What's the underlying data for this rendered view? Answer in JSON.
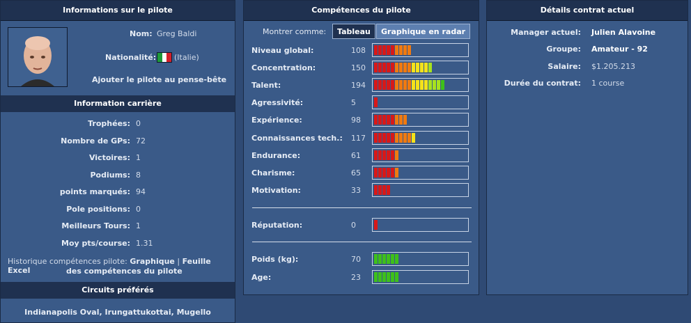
{
  "pilot_info": {
    "title": "Informations sur le pilote",
    "name_label": "Nom:",
    "name_value": "Greg Baldi",
    "nationality_label": "Nationalité:",
    "nationality_value": "(Italie)",
    "flag_icon": "italy-flag-icon",
    "flag_colors": [
      "#1e9a3a",
      "#ffffff",
      "#d4202a"
    ],
    "add_memo_link": "Ajouter le pilote au pense-bête"
  },
  "career": {
    "title": "Information carrière",
    "rows": [
      {
        "label": "Trophées:",
        "value": "0"
      },
      {
        "label": "Nombre de GPs:",
        "value": "72"
      },
      {
        "label": "Victoires:",
        "value": "1"
      },
      {
        "label": "Podiums:",
        "value": "8"
      },
      {
        "label": "points marqués:",
        "value": "94"
      },
      {
        "label": "Pole positions:",
        "value": "0"
      },
      {
        "label": "Meilleurs Tours:",
        "value": "1"
      },
      {
        "label": "Moy pts/course:",
        "value": "1.31"
      }
    ],
    "history_prefix": "Historique compétences pilote:",
    "history_graph_link": "Graphique",
    "history_separator": "|",
    "history_excel_link_1": "Feuille Excel",
    "history_excel_link_2": "des compétences du pilote"
  },
  "circuits": {
    "title": "Circuits préférés",
    "list": "Indianapolis Oval, Irungattukottai, Mugello"
  },
  "skills": {
    "title": "Compétences du pilote",
    "show_as_label": "Montrer comme:",
    "tab_table": "Tableau",
    "tab_radar": "Graphique en radar",
    "rows": [
      {
        "label": "Niveau global:",
        "value": "108",
        "level": 0.42,
        "palette": "heat"
      },
      {
        "label": "Concentration:",
        "value": "150",
        "level": 0.62,
        "palette": "heat"
      },
      {
        "label": "Talent:",
        "value": "194",
        "level": 0.78,
        "palette": "heat"
      },
      {
        "label": "Agressivité:",
        "value": "5",
        "level": 0.05,
        "palette": "heat"
      },
      {
        "label": "Expérience:",
        "value": "98",
        "level": 0.38,
        "palette": "heat"
      },
      {
        "label": "Connaissances tech.:",
        "value": "117",
        "level": 0.46,
        "palette": "heat"
      },
      {
        "label": "Endurance:",
        "value": "61",
        "level": 0.27,
        "palette": "heat"
      },
      {
        "label": "Charisme:",
        "value": "65",
        "level": 0.27,
        "palette": "heat"
      },
      {
        "label": "Motivation:",
        "value": "33",
        "level": 0.16,
        "palette": "heat"
      }
    ],
    "reputation": {
      "label": "Réputation:",
      "value": "0",
      "level": 0.05,
      "palette": "heat"
    },
    "physical": [
      {
        "label": "Poids (kg):",
        "value": "70",
        "level": 0.27,
        "palette": "green"
      },
      {
        "label": "Age:",
        "value": "23",
        "level": 0.27,
        "palette": "green"
      }
    ],
    "colors": {
      "red": "#d81818",
      "orange": "#f07a10",
      "yellow": "#f4e21a",
      "lime": "#a8e21e",
      "green": "#3ec01a"
    }
  },
  "contract": {
    "title": "Détails contrat actuel",
    "rows": [
      {
        "label": "Manager actuel:",
        "value": "Julien Alavoine",
        "bold": true
      },
      {
        "label": "Groupe:",
        "value": "Amateur - 92",
        "bold": true
      },
      {
        "label": "Salaire:",
        "value": "$1.205.213",
        "bold": false
      },
      {
        "label": "Durée du contrat:",
        "value": "1 course",
        "bold": false
      }
    ]
  }
}
